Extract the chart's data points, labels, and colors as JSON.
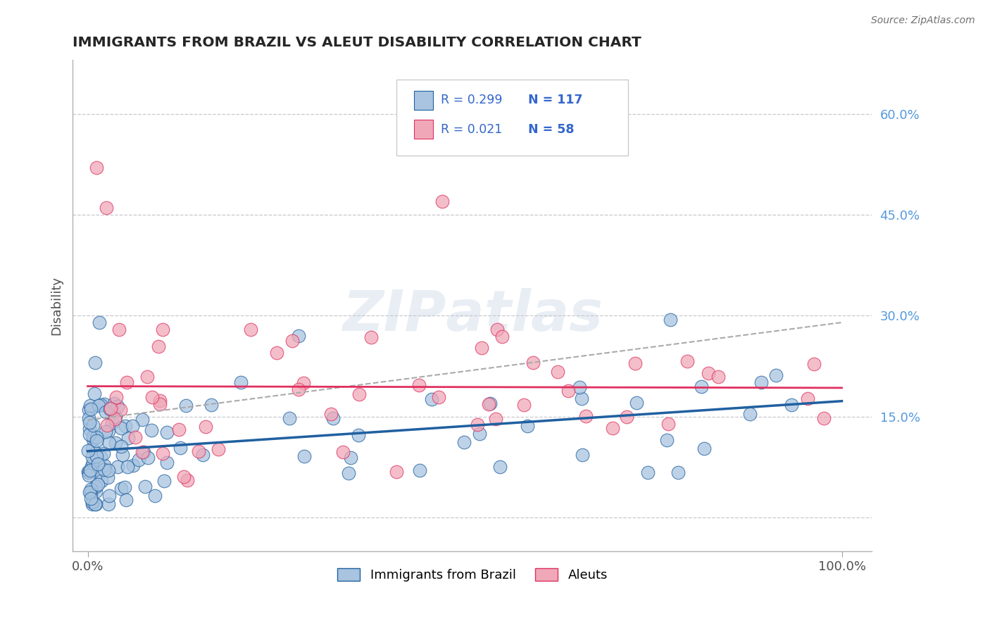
{
  "title": "IMMIGRANTS FROM BRAZIL VS ALEUT DISABILITY CORRELATION CHART",
  "source": "Source: ZipAtlas.com",
  "ylabel": "Disability",
  "legend_labels": [
    "Immigrants from Brazil",
    "Aleuts"
  ],
  "r_brazil": 0.299,
  "n_brazil": 117,
  "r_aleut": 0.021,
  "n_aleut": 58,
  "color_brazil": "#a8c4e0",
  "color_aleut": "#f0a8b8",
  "line_brazil": "#2060a0",
  "line_aleut": "#e03060",
  "background_color": "#ffffff",
  "grid_color": "#c8c8d0",
  "watermark": "ZIPatlas",
  "yticks": [
    0,
    15,
    30,
    45,
    60
  ],
  "ytick_labels": [
    "",
    "15.0%",
    "30.0%",
    "45.0%",
    "60.0%"
  ],
  "xtick_labels": [
    "0.0%",
    "100.0%"
  ]
}
